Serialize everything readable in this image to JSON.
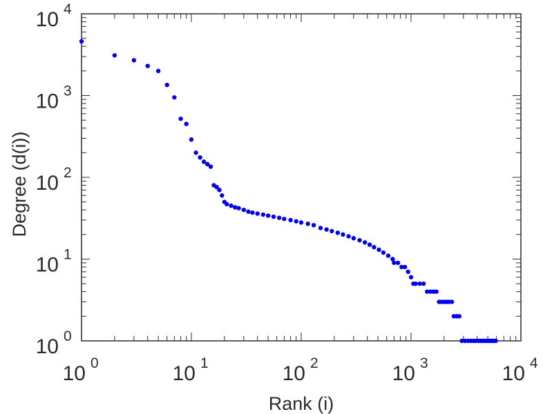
{
  "chart_data": {
    "type": "scatter",
    "title": "",
    "xlabel": "Rank (i)",
    "ylabel": "Degree (d(i))",
    "xscale": "log",
    "yscale": "log",
    "xlim": [
      1,
      10000
    ],
    "ylim": [
      1,
      10000
    ],
    "x_ticks": [
      {
        "base": "10",
        "exp": "0"
      },
      {
        "base": "10",
        "exp": "1"
      },
      {
        "base": "10",
        "exp": "2"
      },
      {
        "base": "10",
        "exp": "3"
      },
      {
        "base": "10",
        "exp": "4"
      }
    ],
    "y_ticks": [
      {
        "base": "10",
        "exp": "0"
      },
      {
        "base": "10",
        "exp": "1"
      },
      {
        "base": "10",
        "exp": "2"
      },
      {
        "base": "10",
        "exp": "3"
      },
      {
        "base": "10",
        "exp": "4"
      }
    ],
    "grid": false,
    "marker_color": "#0000ee",
    "points": [
      [
        1,
        4600
      ],
      [
        2,
        3100
      ],
      [
        3,
        2700
      ],
      [
        4,
        2300
      ],
      [
        5,
        2000
      ],
      [
        6,
        1350
      ],
      [
        7,
        950
      ],
      [
        8,
        520
      ],
      [
        9,
        450
      ],
      [
        10,
        290
      ],
      [
        11,
        200
      ],
      [
        12,
        175
      ],
      [
        13,
        155
      ],
      [
        14,
        145
      ],
      [
        15,
        135
      ],
      [
        16,
        80
      ],
      [
        17,
        76
      ],
      [
        18,
        70
      ],
      [
        19,
        60
      ],
      [
        20,
        50
      ],
      [
        21,
        47
      ],
      [
        23,
        45
      ],
      [
        25,
        43
      ],
      [
        27,
        42
      ],
      [
        30,
        40
      ],
      [
        33,
        38
      ],
      [
        36,
        37
      ],
      [
        40,
        36
      ],
      [
        45,
        35
      ],
      [
        50,
        34
      ],
      [
        56,
        33
      ],
      [
        63,
        32
      ],
      [
        70,
        31
      ],
      [
        80,
        30
      ],
      [
        90,
        29
      ],
      [
        100,
        28
      ],
      [
        115,
        27
      ],
      [
        130,
        26
      ],
      [
        150,
        24
      ],
      [
        170,
        23
      ],
      [
        190,
        22
      ],
      [
        215,
        21
      ],
      [
        240,
        20
      ],
      [
        270,
        19
      ],
      [
        300,
        18
      ],
      [
        340,
        17
      ],
      [
        380,
        16
      ],
      [
        420,
        15
      ],
      [
        460,
        14
      ],
      [
        510,
        13
      ],
      [
        560,
        12
      ],
      [
        620,
        11
      ],
      [
        680,
        10
      ],
      [
        700,
        9
      ],
      [
        760,
        9
      ],
      [
        820,
        8
      ],
      [
        880,
        8
      ],
      [
        940,
        7
      ],
      [
        1000,
        6
      ],
      [
        1050,
        5
      ],
      [
        1100,
        5
      ],
      [
        1200,
        5
      ],
      [
        1300,
        5
      ],
      [
        1400,
        4
      ],
      [
        1500,
        4
      ],
      [
        1600,
        4
      ],
      [
        1700,
        4
      ],
      [
        1800,
        3
      ],
      [
        1900,
        3
      ],
      [
        2000,
        3
      ],
      [
        2100,
        3
      ],
      [
        2200,
        3
      ],
      [
        2350,
        3
      ],
      [
        2450,
        2
      ],
      [
        2600,
        2
      ],
      [
        2750,
        2
      ],
      [
        2900,
        1
      ],
      [
        3100,
        1
      ],
      [
        3300,
        1
      ],
      [
        3500,
        1
      ],
      [
        3700,
        1
      ],
      [
        3900,
        1
      ],
      [
        4100,
        1
      ],
      [
        4300,
        1
      ],
      [
        4500,
        1
      ],
      [
        4700,
        1
      ],
      [
        4900,
        1
      ],
      [
        5100,
        1
      ],
      [
        5300,
        1
      ],
      [
        5500,
        1
      ],
      [
        5700,
        1
      ],
      [
        5900,
        1
      ]
    ]
  }
}
